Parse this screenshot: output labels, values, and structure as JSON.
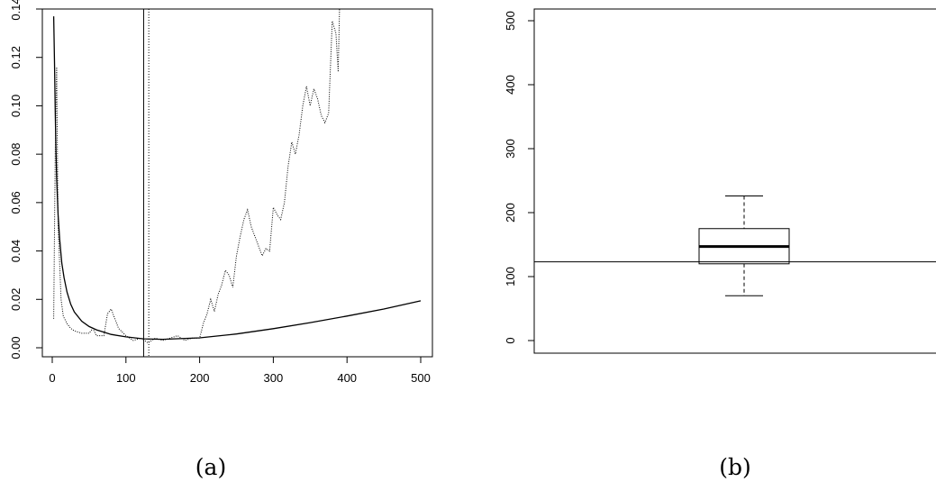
{
  "chart_data": [
    {
      "type": "line",
      "panel_label": "(a)",
      "xlim": [
        0,
        500
      ],
      "ylim": [
        0,
        0.14
      ],
      "x_ticks": [
        0,
        100,
        200,
        300,
        400,
        500
      ],
      "x_tick_labels": [
        "0",
        "100",
        "200",
        "300",
        "400",
        "500"
      ],
      "y_ticks": [
        0,
        0.02,
        0.04,
        0.06,
        0.08,
        0.1,
        0.12,
        0.14
      ],
      "y_tick_labels": [
        "0.00",
        "0.02",
        "0.04",
        "0.06",
        "0.08",
        "0.10",
        "0.12",
        "0.14"
      ],
      "vlines": [
        {
          "x": 124,
          "style": "solid"
        },
        {
          "x": 131,
          "style": "dotted"
        }
      ],
      "series": [
        {
          "style": "solid",
          "x": [
            2,
            3,
            4,
            5,
            6,
            8,
            10,
            13,
            16,
            20,
            25,
            30,
            40,
            50,
            60,
            80,
            100,
            124,
            150,
            200,
            250,
            300,
            350,
            400,
            450,
            500
          ],
          "y": [
            0.137,
            0.118,
            0.098,
            0.082,
            0.07,
            0.055,
            0.045,
            0.035,
            0.029,
            0.023,
            0.018,
            0.0148,
            0.011,
            0.0088,
            0.0074,
            0.0055,
            0.0045,
            0.0037,
            0.0035,
            0.0041,
            0.0057,
            0.0079,
            0.0104,
            0.0131,
            0.016,
            0.0194
          ]
        },
        {
          "style": "dotted",
          "x": [
            2,
            4,
            6,
            8,
            10,
            12,
            15,
            20,
            25,
            30,
            40,
            50,
            55,
            60,
            70,
            75,
            80,
            85,
            90,
            100,
            110,
            120,
            125,
            130,
            140,
            150,
            160,
            170,
            180,
            190,
            200,
            205,
            210,
            215,
            220,
            225,
            230,
            235,
            240,
            245,
            250,
            255,
            260,
            265,
            270,
            275,
            280,
            285,
            290,
            295,
            300,
            305,
            310,
            315,
            320,
            325,
            330,
            335,
            340,
            345,
            350,
            355,
            360,
            365,
            370,
            375,
            380,
            385,
            388,
            390
          ],
          "y": [
            0.012,
            0.08,
            0.116,
            0.05,
            0.035,
            0.02,
            0.013,
            0.01,
            0.008,
            0.007,
            0.006,
            0.006,
            0.008,
            0.005,
            0.005,
            0.014,
            0.016,
            0.012,
            0.008,
            0.005,
            0.003,
            0.004,
            0.003,
            0.002,
            0.004,
            0.003,
            0.004,
            0.005,
            0.003,
            0.004,
            0.004,
            0.01,
            0.014,
            0.02,
            0.015,
            0.022,
            0.026,
            0.032,
            0.03,
            0.025,
            0.038,
            0.046,
            0.053,
            0.057,
            0.05,
            0.046,
            0.042,
            0.038,
            0.041,
            0.04,
            0.058,
            0.055,
            0.053,
            0.06,
            0.075,
            0.085,
            0.08,
            0.088,
            0.1,
            0.108,
            0.1,
            0.107,
            0.103,
            0.096,
            0.093,
            0.097,
            0.135,
            0.13,
            0.114,
            0.142
          ]
        }
      ]
    },
    {
      "type": "boxplot",
      "panel_label": "(b)",
      "ylim": [
        0,
        500
      ],
      "y_ticks": [
        0,
        100,
        200,
        300,
        400,
        500
      ],
      "y_tick_labels": [
        "0",
        "100",
        "200",
        "300",
        "400",
        "500"
      ],
      "box": {
        "whisker_low": 70,
        "q1": 120,
        "median": 147,
        "q3": 175,
        "whisker_high": 226
      },
      "hline": 123
    }
  ]
}
